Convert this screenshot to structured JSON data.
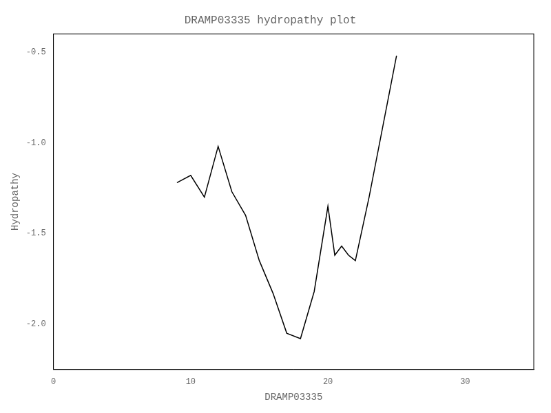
{
  "chart_data": {
    "type": "line",
    "title": "DRAMP03335 hydropathy plot",
    "xlabel": "DRAMP03335",
    "ylabel": "Hydropathy",
    "x": [
      9,
      10,
      11,
      12,
      13,
      14,
      15,
      16,
      17,
      18,
      19,
      20,
      20.5,
      21,
      21.5,
      22,
      23,
      25
    ],
    "values": [
      -1.22,
      -1.18,
      -1.3,
      -1.02,
      -1.27,
      -1.4,
      -1.65,
      -1.83,
      -2.05,
      -2.08,
      -1.82,
      -1.35,
      -1.62,
      -1.57,
      -1.62,
      -1.65,
      -1.3,
      -0.52
    ],
    "color": "black",
    "xlim": [
      0,
      35
    ],
    "xticks": [
      0,
      10,
      20,
      30
    ],
    "ylim": [
      -2.25,
      -0.4
    ],
    "yticks": [
      {
        "value": -2.0,
        "label": "-2.0"
      },
      -1.5,
      {
        "value": -1.0,
        "label": "-1.0"
      },
      -0.5
    ],
    "grid": false
  }
}
